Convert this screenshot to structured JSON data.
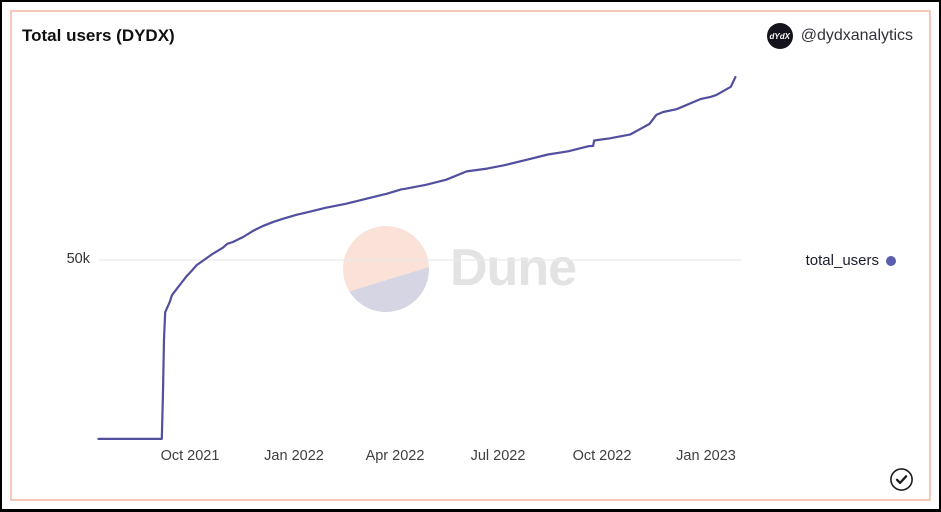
{
  "header": {
    "title": "Total users (DYDX)",
    "handle": "@dydxanalytics",
    "avatar_text": "dYdX"
  },
  "legend": {
    "label": "total_users",
    "dot_color": "#5a5cad"
  },
  "watermark": {
    "text": "Dune"
  },
  "footer": {
    "icon": "check-circle"
  },
  "colors": {
    "line": "#514f9e",
    "card_border": "#f5c8ba",
    "gridline": "#e9e9e9",
    "avatar_bg": "#15131c"
  },
  "chart_data": {
    "type": "line",
    "title": "Total users (DYDX)",
    "legend_position": "right",
    "grid": "single horizontal line at 50k",
    "y_unit": "users (thousands)",
    "ylim": [
      0,
      110
    ],
    "y_ticks": [
      {
        "label": "50k",
        "value": 50
      }
    ],
    "x_ticks": [
      {
        "label": "Oct 2021",
        "date": "2021-10-01"
      },
      {
        "label": "Jan 2022",
        "date": "2022-01-01"
      },
      {
        "label": "Apr 2022",
        "date": "2022-04-01"
      },
      {
        "label": "Jul 2022",
        "date": "2022-07-01"
      },
      {
        "label": "Oct 2022",
        "date": "2022-10-01"
      },
      {
        "label": "Jan 2023",
        "date": "2023-01-01"
      }
    ],
    "series": [
      {
        "name": "total_users",
        "points": [
          [
            "2021-07-12",
            0.3
          ],
          [
            "2021-09-06",
            0.3
          ],
          [
            "2021-09-07",
            12
          ],
          [
            "2021-09-08",
            28
          ],
          [
            "2021-09-09",
            35.5
          ],
          [
            "2021-09-13",
            38.3
          ],
          [
            "2021-09-15",
            40.2
          ],
          [
            "2021-09-19",
            41.9
          ],
          [
            "2021-09-24",
            43.9
          ],
          [
            "2021-09-28",
            45.5
          ],
          [
            "2021-10-03",
            47.2
          ],
          [
            "2021-10-07",
            48.6
          ],
          [
            "2021-10-12",
            49.7
          ],
          [
            "2021-10-21",
            51.7
          ],
          [
            "2021-10-30",
            53.4
          ],
          [
            "2021-11-03",
            54.5
          ],
          [
            "2021-11-08",
            55.0
          ],
          [
            "2021-11-17",
            56.4
          ],
          [
            "2021-11-26",
            58.1
          ],
          [
            "2021-12-05",
            59.5
          ],
          [
            "2021-12-14",
            60.6
          ],
          [
            "2021-12-23",
            61.5
          ],
          [
            "2022-01-04",
            62.6
          ],
          [
            "2022-01-11",
            63.1
          ],
          [
            "2022-01-29",
            64.5
          ],
          [
            "2022-02-16",
            65.6
          ],
          [
            "2022-03-06",
            67.0
          ],
          [
            "2022-03-24",
            68.4
          ],
          [
            "2022-04-06",
            69.6
          ],
          [
            "2022-04-10",
            69.8
          ],
          [
            "2022-04-28",
            70.9
          ],
          [
            "2022-05-16",
            72.3
          ],
          [
            "2022-06-03",
            74.6
          ],
          [
            "2022-06-21",
            75.4
          ],
          [
            "2022-07-06",
            76.3
          ],
          [
            "2022-07-27",
            77.9
          ],
          [
            "2022-08-14",
            79.3
          ],
          [
            "2022-09-01",
            80.2
          ],
          [
            "2022-09-19",
            81.6
          ],
          [
            "2022-09-23",
            81.7
          ],
          [
            "2022-09-24",
            83.2
          ],
          [
            "2022-10-08",
            83.8
          ],
          [
            "2022-10-26",
            84.9
          ],
          [
            "2022-11-12",
            87.8
          ],
          [
            "2022-11-18",
            90.3
          ],
          [
            "2022-11-24",
            91.1
          ],
          [
            "2022-12-06",
            91.9
          ],
          [
            "2022-12-27",
            94.7
          ],
          [
            "2023-01-05",
            95.3
          ],
          [
            "2023-01-10",
            95.8
          ],
          [
            "2023-01-23",
            98.1
          ],
          [
            "2023-01-27",
            100.8
          ]
        ]
      }
    ]
  }
}
